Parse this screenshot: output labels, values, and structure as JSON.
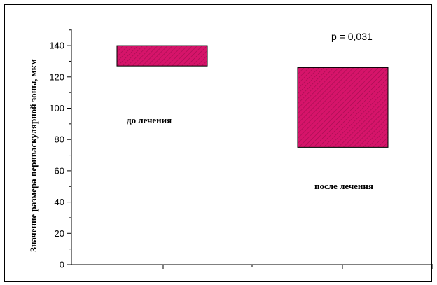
{
  "chart_data": {
    "type": "bar",
    "style": "floating",
    "categories": [
      "до лечения",
      "после лечения"
    ],
    "ranges": [
      {
        "category": "до лечения",
        "low": 127,
        "high": 140
      },
      {
        "category": "после лечения",
        "low": 75,
        "high": 126
      }
    ],
    "title": "",
    "xlabel": "",
    "ylabel": "Значение размера периваскулярной зоны, мкм",
    "ylim": [
      0,
      150
    ],
    "yticks": [
      0,
      20,
      40,
      60,
      80,
      100,
      120,
      140
    ],
    "annotation": "p = 0,031",
    "bar_color": "#d6146a",
    "hatch_color": "#a00e4f",
    "grid": false
  }
}
